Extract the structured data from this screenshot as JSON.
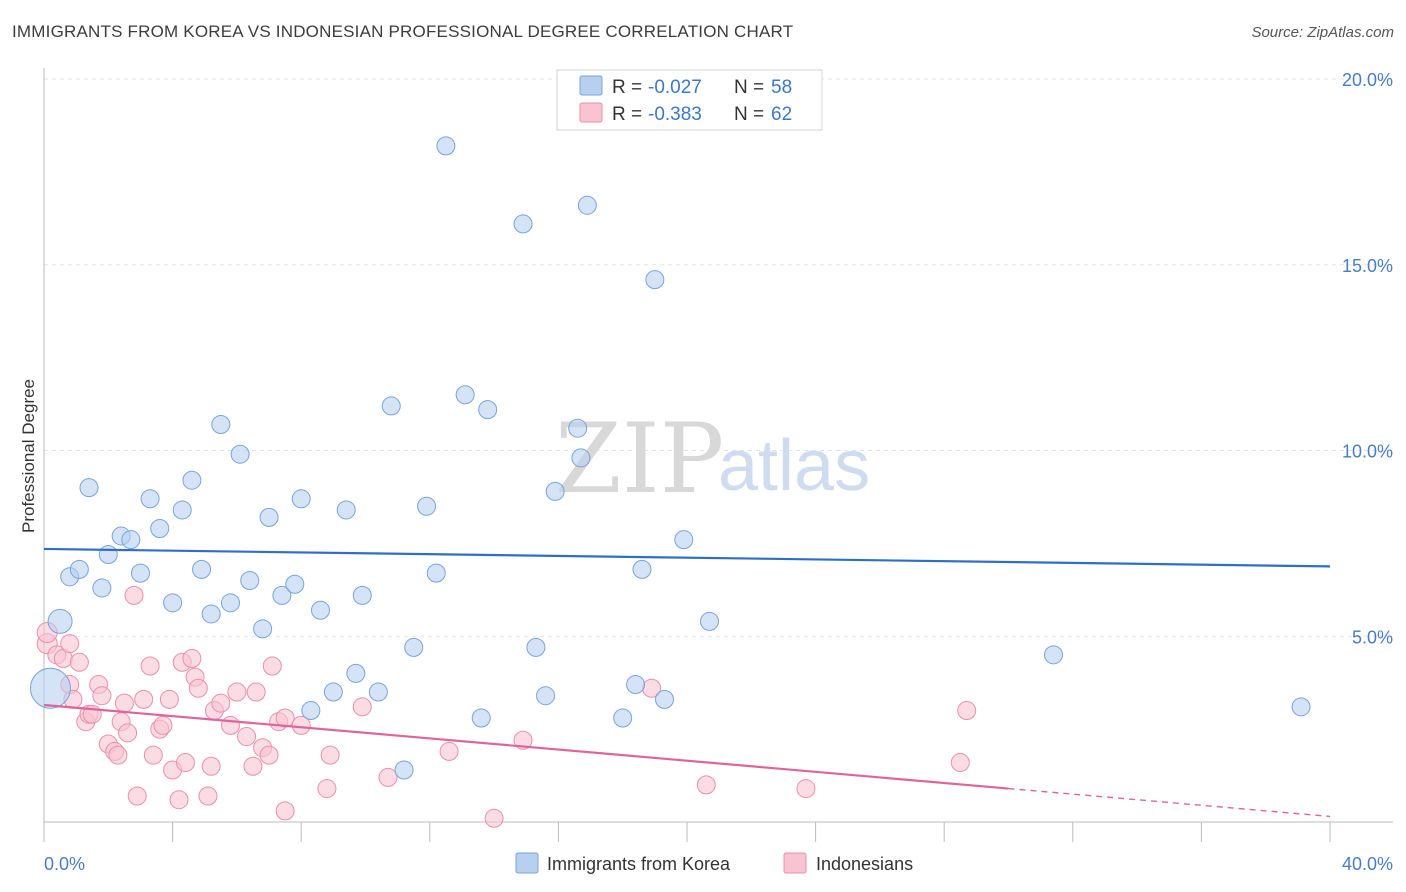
{
  "title": "IMMIGRANTS FROM KOREA VS INDONESIAN PROFESSIONAL DEGREE CORRELATION CHART",
  "source": "Source: ZipAtlas.com",
  "watermark": {
    "zip": "ZIP",
    "atlas": "atlas"
  },
  "legend": {
    "rows": [
      {
        "r_label": "R =",
        "r_value": "-0.027",
        "n_label": "N =",
        "n_value": "58"
      },
      {
        "r_label": "R =",
        "r_value": "-0.383",
        "n_label": "N =",
        "n_value": "62"
      }
    ]
  },
  "colors": {
    "korea_fill": "#b8d0f0",
    "korea_stroke": "#7aa3dc",
    "korea_line": "#2d6fc7",
    "indo_fill": "#f8c3d2",
    "indo_stroke": "#ec8fab",
    "indo_line": "#e0649a",
    "grid": "#e3e3e3",
    "axis": "#bbbbbb"
  },
  "chart_data": {
    "type": "scatter",
    "title": "IMMIGRANTS FROM KOREA VS INDONESIAN PROFESSIONAL DEGREE CORRELATION CHART",
    "xlabel": "",
    "ylabel": "Professional Degree",
    "xlim": [
      0,
      40
    ],
    "ylim": [
      0,
      20
    ],
    "x_tick_labels": [
      "0.0%",
      "40.0%"
    ],
    "y_ticks": [
      5,
      10,
      15,
      20
    ],
    "y_tick_labels": [
      "5.0%",
      "10.0%",
      "15.0%",
      "20.0%"
    ],
    "legend_position": "top-center",
    "series": [
      {
        "name": "Immigrants from Korea",
        "r": -0.027,
        "n": 58,
        "trend": {
          "x0": 0,
          "y0": 7.35,
          "x1": 40,
          "y1": 6.88
        },
        "points": [
          [
            0.5,
            5.4,
            12
          ],
          [
            0.2,
            3.6,
            20
          ],
          [
            0.8,
            6.6,
            9
          ],
          [
            1.1,
            6.8,
            9
          ],
          [
            1.4,
            9.0,
            9
          ],
          [
            1.8,
            6.3,
            9
          ],
          [
            2.0,
            7.2,
            9
          ],
          [
            2.4,
            7.7,
            9
          ],
          [
            2.7,
            7.6,
            9
          ],
          [
            3.0,
            6.7,
            9
          ],
          [
            3.3,
            8.7,
            9
          ],
          [
            3.6,
            7.9,
            9
          ],
          [
            4.0,
            5.9,
            9
          ],
          [
            4.3,
            8.4,
            9
          ],
          [
            4.6,
            9.2,
            9
          ],
          [
            4.9,
            6.8,
            9
          ],
          [
            5.2,
            5.6,
            9
          ],
          [
            5.5,
            10.7,
            9
          ],
          [
            5.8,
            5.9,
            9
          ],
          [
            6.1,
            9.9,
            9
          ],
          [
            6.4,
            6.5,
            9
          ],
          [
            6.8,
            5.2,
            9
          ],
          [
            7.0,
            8.2,
            9
          ],
          [
            7.4,
            6.1,
            9
          ],
          [
            7.8,
            6.4,
            9
          ],
          [
            8.0,
            8.7,
            9
          ],
          [
            8.3,
            3.0,
            9
          ],
          [
            8.6,
            5.7,
            9
          ],
          [
            9.0,
            3.5,
            9
          ],
          [
            9.4,
            8.4,
            9
          ],
          [
            9.7,
            4.0,
            9
          ],
          [
            9.9,
            6.1,
            9
          ],
          [
            10.4,
            3.5,
            9
          ],
          [
            10.8,
            11.2,
            9
          ],
          [
            11.2,
            1.4,
            9
          ],
          [
            11.5,
            4.7,
            9
          ],
          [
            11.9,
            8.5,
            9
          ],
          [
            12.2,
            6.7,
            9
          ],
          [
            12.5,
            18.2,
            9
          ],
          [
            13.1,
            11.5,
            9
          ],
          [
            13.6,
            2.8,
            9
          ],
          [
            13.8,
            11.1,
            9
          ],
          [
            14.9,
            16.1,
            9
          ],
          [
            15.3,
            4.7,
            9
          ],
          [
            15.6,
            3.4,
            9
          ],
          [
            15.9,
            8.9,
            9
          ],
          [
            16.6,
            10.6,
            9
          ],
          [
            16.7,
            9.8,
            9
          ],
          [
            16.9,
            16.6,
            9
          ],
          [
            18.0,
            2.8,
            9
          ],
          [
            18.4,
            3.7,
            9
          ],
          [
            18.6,
            6.8,
            9
          ],
          [
            19.3,
            3.3,
            9
          ],
          [
            19.0,
            14.6,
            9
          ],
          [
            19.9,
            7.6,
            9
          ],
          [
            20.7,
            5.4,
            9
          ],
          [
            31.4,
            4.5,
            9
          ],
          [
            39.1,
            3.1,
            9
          ]
        ]
      },
      {
        "name": "Indonesians",
        "r": -0.383,
        "n": 62,
        "trend": {
          "x0": 0,
          "y0": 3.15,
          "x1": 30,
          "y1": 0.9
        },
        "trend_dashed": {
          "x0": 30,
          "y0": 0.9,
          "x1": 40,
          "y1": 0.15
        },
        "points": [
          [
            0.1,
            4.8,
            10
          ],
          [
            0.1,
            5.1,
            10
          ],
          [
            0.4,
            4.5,
            9
          ],
          [
            0.6,
            4.4,
            9
          ],
          [
            0.8,
            4.8,
            9
          ],
          [
            0.8,
            3.7,
            9
          ],
          [
            0.9,
            3.3,
            9
          ],
          [
            1.1,
            4.3,
            9
          ],
          [
            1.3,
            2.7,
            9
          ],
          [
            1.4,
            2.9,
            9
          ],
          [
            1.5,
            2.9,
            9
          ],
          [
            1.7,
            3.7,
            9
          ],
          [
            1.8,
            3.4,
            9
          ],
          [
            2.0,
            2.1,
            9
          ],
          [
            2.2,
            1.9,
            9
          ],
          [
            2.3,
            1.8,
            9
          ],
          [
            2.4,
            2.7,
            9
          ],
          [
            2.5,
            3.2,
            9
          ],
          [
            2.6,
            2.4,
            9
          ],
          [
            2.8,
            6.1,
            9
          ],
          [
            2.9,
            0.7,
            9
          ],
          [
            3.1,
            3.3,
            9
          ],
          [
            3.3,
            4.2,
            9
          ],
          [
            3.4,
            1.8,
            9
          ],
          [
            3.6,
            2.5,
            9
          ],
          [
            3.7,
            2.6,
            9
          ],
          [
            3.9,
            3.3,
            9
          ],
          [
            4.0,
            1.4,
            9
          ],
          [
            4.2,
            0.6,
            9
          ],
          [
            4.3,
            4.3,
            9
          ],
          [
            4.4,
            1.6,
            9
          ],
          [
            4.6,
            4.4,
            9
          ],
          [
            4.7,
            3.9,
            9
          ],
          [
            4.8,
            3.6,
            9
          ],
          [
            5.1,
            0.7,
            9
          ],
          [
            5.2,
            1.5,
            9
          ],
          [
            5.3,
            3.0,
            9
          ],
          [
            5.5,
            3.2,
            9
          ],
          [
            5.8,
            2.6,
            9
          ],
          [
            6.0,
            3.5,
            9
          ],
          [
            6.3,
            2.3,
            9
          ],
          [
            6.5,
            1.5,
            9
          ],
          [
            6.6,
            3.5,
            9
          ],
          [
            6.8,
            2.0,
            9
          ],
          [
            7.0,
            1.8,
            9
          ],
          [
            7.1,
            4.2,
            9
          ],
          [
            7.3,
            2.7,
            9
          ],
          [
            7.5,
            2.8,
            9
          ],
          [
            7.5,
            0.3,
            9
          ],
          [
            8.0,
            2.6,
            9
          ],
          [
            8.8,
            0.9,
            9
          ],
          [
            8.9,
            1.8,
            9
          ],
          [
            9.9,
            3.1,
            9
          ],
          [
            10.7,
            1.2,
            9
          ],
          [
            12.6,
            1.9,
            9
          ],
          [
            14.0,
            0.1,
            9
          ],
          [
            14.9,
            2.2,
            9
          ],
          [
            18.9,
            3.6,
            9
          ],
          [
            20.6,
            1.0,
            9
          ],
          [
            23.7,
            0.9,
            9
          ],
          [
            28.5,
            1.6,
            9
          ],
          [
            28.7,
            3.0,
            9
          ]
        ]
      }
    ]
  }
}
